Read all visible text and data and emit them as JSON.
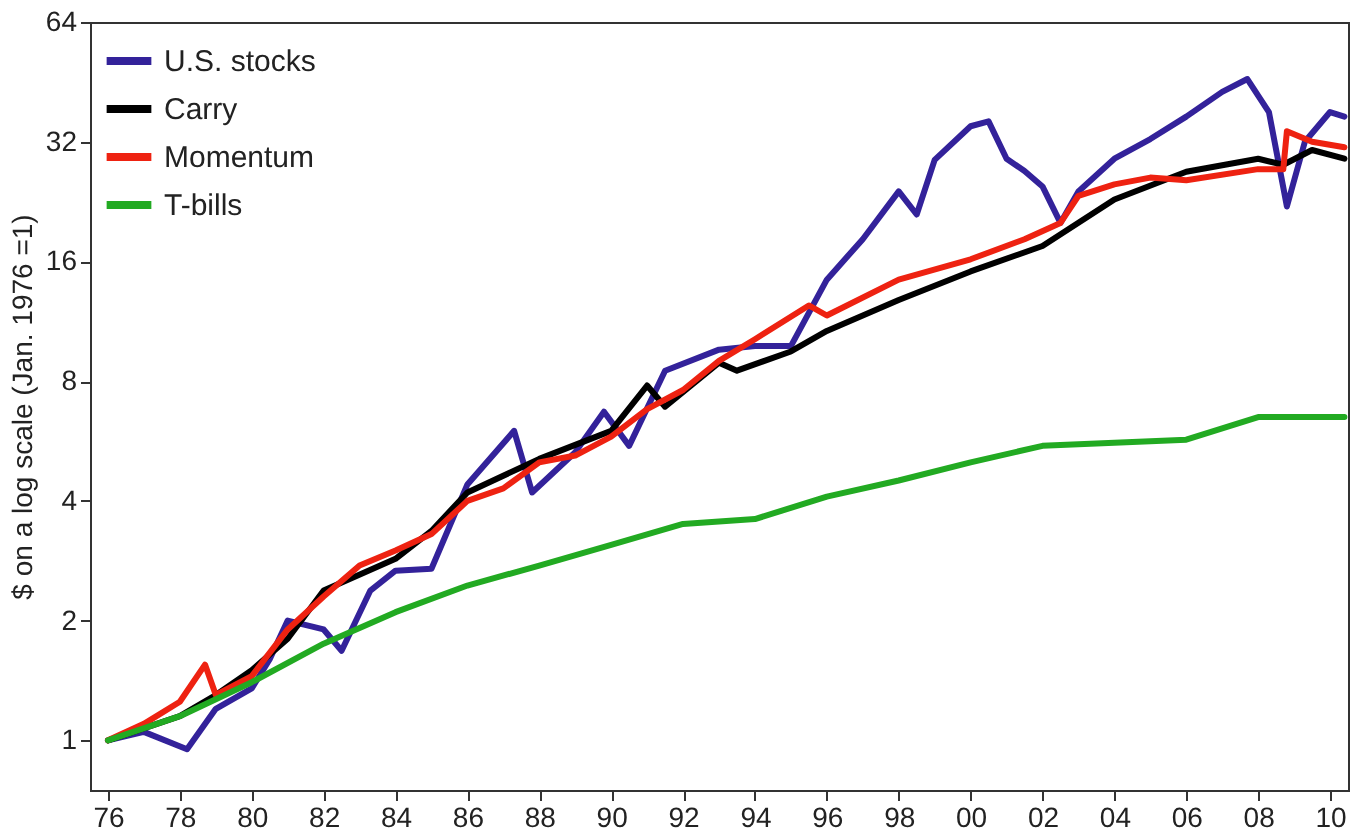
{
  "chart_data": {
    "type": "line",
    "ylabel": "$ on a log scale (Jan. 1976 =1)",
    "log": "y",
    "grid": false,
    "legend": "top left",
    "line_style": "solid",
    "marker": "none",
    "xlim": [
      1975.5,
      2010.5
    ],
    "ylim": [
      0.75,
      64
    ],
    "xticks": [
      {
        "value": 1976,
        "label": "76"
      },
      {
        "value": 1978,
        "label": "78"
      },
      {
        "value": 1980,
        "label": "80"
      },
      {
        "value": 1982,
        "label": "82"
      },
      {
        "value": 1984,
        "label": "84"
      },
      {
        "value": 1986,
        "label": "86"
      },
      {
        "value": 1988,
        "label": "88"
      },
      {
        "value": 1990,
        "label": "90"
      },
      {
        "value": 1992,
        "label": "92"
      },
      {
        "value": 1994,
        "label": "94"
      },
      {
        "value": 1996,
        "label": "96"
      },
      {
        "value": 1998,
        "label": "98"
      },
      {
        "value": 2000,
        "label": "00"
      },
      {
        "value": 2002,
        "label": "02"
      },
      {
        "value": 2004,
        "label": "04"
      },
      {
        "value": 2006,
        "label": "06"
      },
      {
        "value": 2008,
        "label": "08"
      },
      {
        "value": 2010,
        "label": "10"
      }
    ],
    "yticks": [
      1,
      2,
      4,
      8,
      16,
      32,
      64
    ],
    "series": [
      {
        "name": "U.S. stocks",
        "color": "#33229a",
        "x": [
          1976,
          1977,
          1978.2,
          1979,
          1980,
          1980.5,
          1981,
          1982,
          1982.5,
          1983.3,
          1984,
          1985,
          1986,
          1987.3,
          1987.8,
          1989,
          1989.8,
          1990.5,
          1991.5,
          1993,
          1994,
          1995,
          1996,
          1997,
          1998,
          1998.5,
          1999,
          2000,
          2000.5,
          2001,
          2001.5,
          2002,
          2002.5,
          2003,
          2004,
          2005,
          2006,
          2007,
          2007.7,
          2008.3,
          2008.8,
          2009.3,
          2010,
          2010.4
        ],
        "values": [
          1,
          1.05,
          0.95,
          1.2,
          1.35,
          1.6,
          2.0,
          1.9,
          1.68,
          2.38,
          2.67,
          2.7,
          4.4,
          6.0,
          4.2,
          5.3,
          6.7,
          5.5,
          8.5,
          9.6,
          9.8,
          9.8,
          14.4,
          18.2,
          24,
          21,
          28.8,
          35,
          36,
          29,
          27,
          24.7,
          20,
          24,
          29,
          32.5,
          37,
          42.7,
          46,
          38,
          22,
          32,
          38,
          37
        ]
      },
      {
        "name": "Carry",
        "color": "#000000",
        "x": [
          1976,
          1978,
          1979,
          1980,
          1981,
          1982,
          1984,
          1985,
          1986,
          1988,
          1990,
          1991,
          1991.5,
          1993,
          1993.5,
          1995,
          1996,
          1998,
          2000,
          2002,
          2004,
          2006,
          2008,
          2008.7,
          2009.5,
          2010.4
        ],
        "values": [
          1,
          1.15,
          1.3,
          1.5,
          1.8,
          2.38,
          2.86,
          3.36,
          4.2,
          5.1,
          6.0,
          7.8,
          6.9,
          8.9,
          8.5,
          9.5,
          10.7,
          12.8,
          15.1,
          17.5,
          22.9,
          26.9,
          29,
          28,
          30.5,
          29
        ]
      },
      {
        "name": "Momentum",
        "color": "#ee2211",
        "x": [
          1976,
          1977,
          1978,
          1978.7,
          1979,
          1980,
          1981,
          1982,
          1983,
          1984,
          1985,
          1986,
          1987,
          1988,
          1989,
          1990,
          1991,
          1992,
          1993,
          1994,
          1995.5,
          1996,
          1998,
          2000,
          2001.5,
          2002.5,
          2003,
          2004,
          2005,
          2006,
          2008,
          2008.7,
          2008.8,
          2009.5,
          2010.4
        ],
        "values": [
          1,
          1.1,
          1.25,
          1.55,
          1.3,
          1.45,
          1.9,
          2.3,
          2.75,
          3.0,
          3.3,
          4.0,
          4.3,
          5.0,
          5.2,
          5.8,
          6.8,
          7.6,
          9.0,
          10.2,
          12.4,
          11.7,
          14.4,
          16.2,
          18.2,
          20,
          23.4,
          25,
          26,
          25.6,
          27.3,
          27.3,
          34,
          32,
          31
        ]
      },
      {
        "name": "T-bills",
        "color": "#22aa22",
        "x": [
          1976,
          1978,
          1980,
          1982,
          1984,
          1986,
          1988,
          1990,
          1992,
          1994,
          1996,
          1998,
          2000,
          2002,
          2004,
          2006,
          2008,
          2010.4
        ],
        "values": [
          1,
          1.15,
          1.4,
          1.75,
          2.1,
          2.45,
          2.75,
          3.1,
          3.5,
          3.6,
          4.1,
          4.5,
          5.0,
          5.5,
          5.6,
          5.7,
          6.5,
          6.5
        ]
      }
    ]
  }
}
